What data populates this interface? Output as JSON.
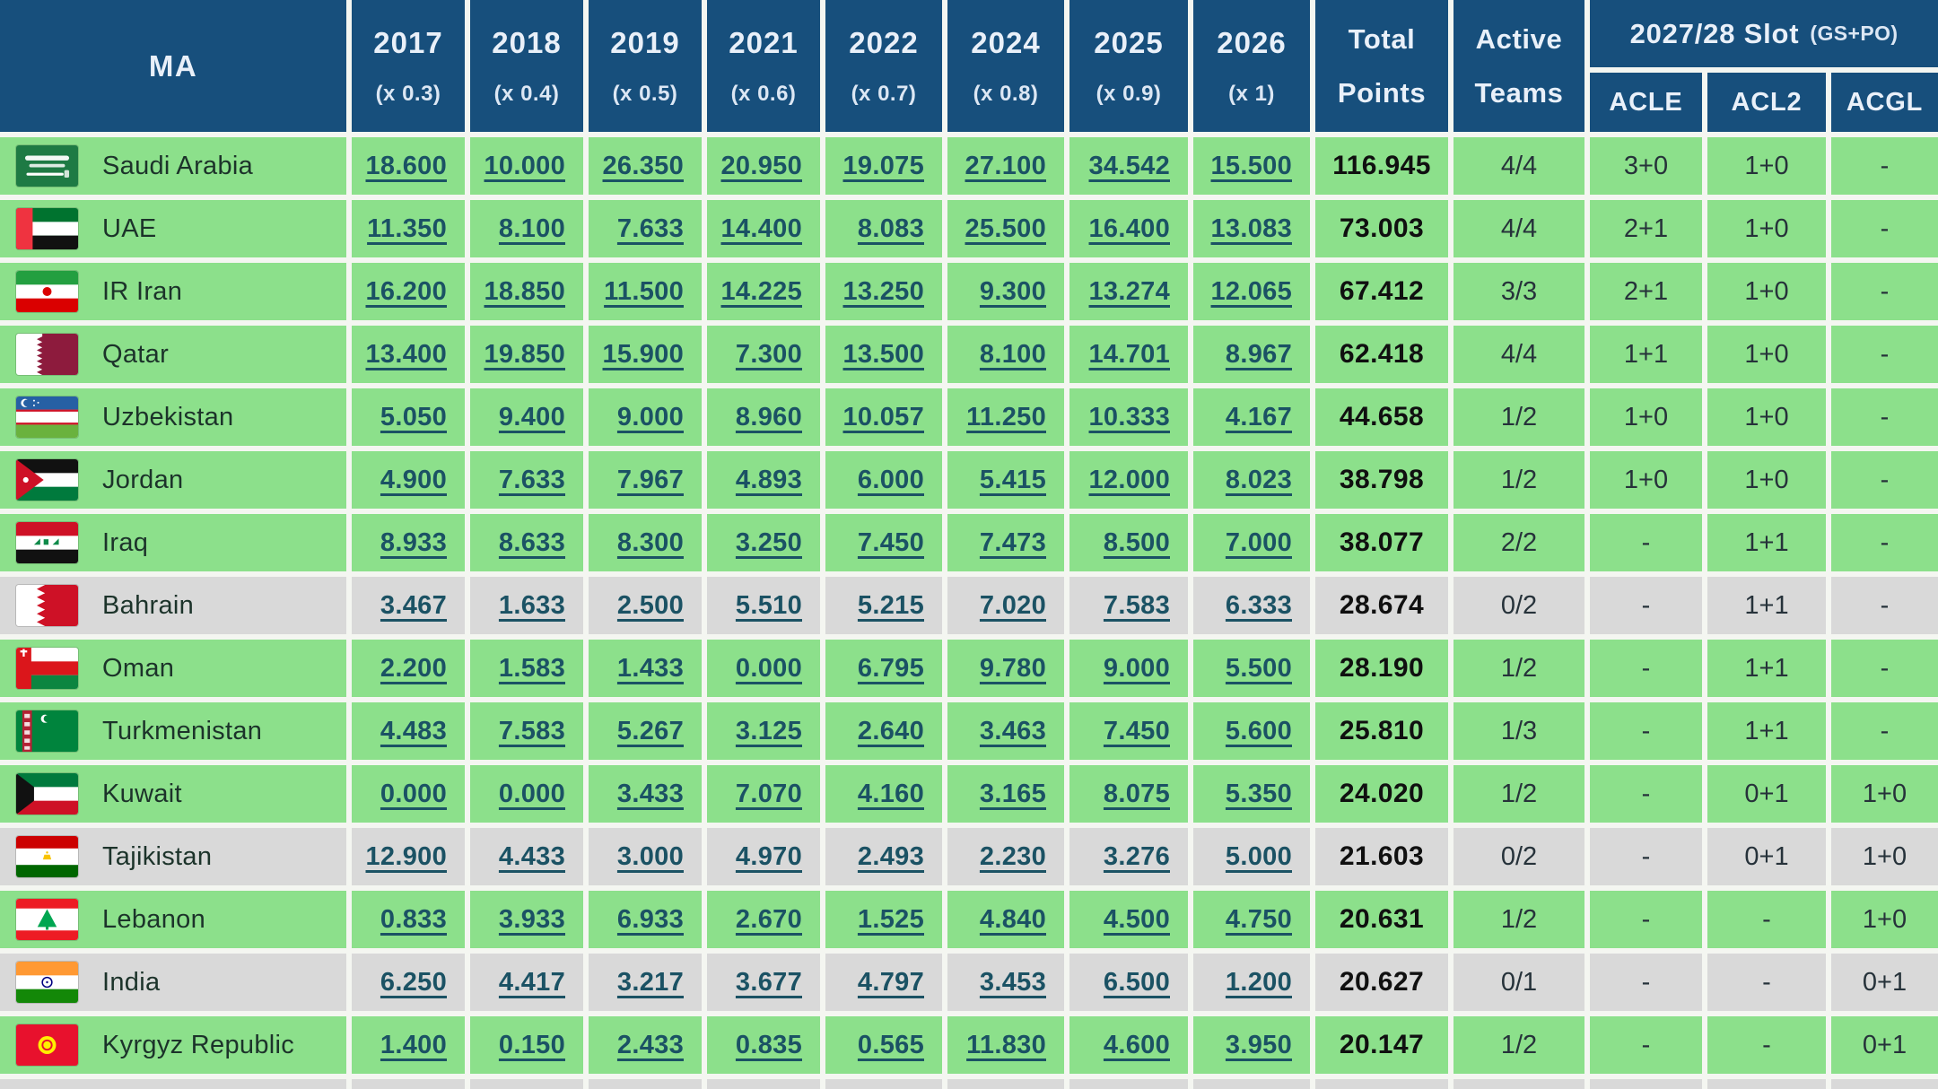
{
  "colors": {
    "header_bg": "#174f7c",
    "row_green": "#8ce08b",
    "row_gray": "#d9d9d9",
    "link": "#1b5264",
    "gap": "#f4f6f1"
  },
  "chart_data": {
    "type": "table",
    "title": "AFC MA ranking points and 2027/28 slot allocation",
    "header": {
      "ma_label": "MA",
      "year_columns": [
        {
          "year": "2017",
          "mult": "(x 0.3)"
        },
        {
          "year": "2018",
          "mult": "(x 0.4)"
        },
        {
          "year": "2019",
          "mult": "(x 0.5)"
        },
        {
          "year": "2021",
          "mult": "(x 0.6)"
        },
        {
          "year": "2022",
          "mult": "(x 0.7)"
        },
        {
          "year": "2024",
          "mult": "(x 0.8)"
        },
        {
          "year": "2025",
          "mult": "(x 0.9)"
        },
        {
          "year": "2026",
          "mult": "(x 1)"
        }
      ],
      "total_points_line1": "Total",
      "total_points_line2": "Points",
      "active_teams_line1": "Active",
      "active_teams_line2": "Teams",
      "slot_title": "2027/28 Slot",
      "slot_suffix": "(GS+PO)",
      "slot_subcols": [
        "ACLE",
        "ACL2",
        "ACGL"
      ]
    },
    "rows": [
      {
        "name": "Saudi Arabia",
        "flag": "saudi-arabia",
        "inactive": false,
        "values": [
          "18.600",
          "10.000",
          "26.350",
          "20.950",
          "19.075",
          "27.100",
          "34.542",
          "15.500"
        ],
        "total": "116.945",
        "active": "4/4",
        "acle": "3+0",
        "acl2": "1+0",
        "acgl": "-"
      },
      {
        "name": "UAE",
        "flag": "uae",
        "inactive": false,
        "values": [
          "11.350",
          "8.100",
          "7.633",
          "14.400",
          "8.083",
          "25.500",
          "16.400",
          "13.083"
        ],
        "total": "73.003",
        "active": "4/4",
        "acle": "2+1",
        "acl2": "1+0",
        "acgl": "-"
      },
      {
        "name": "IR Iran",
        "flag": "iran",
        "inactive": false,
        "values": [
          "16.200",
          "18.850",
          "11.500",
          "14.225",
          "13.250",
          "9.300",
          "13.274",
          "12.065"
        ],
        "total": "67.412",
        "active": "3/3",
        "acle": "2+1",
        "acl2": "1+0",
        "acgl": "-"
      },
      {
        "name": "Qatar",
        "flag": "qatar",
        "inactive": false,
        "values": [
          "13.400",
          "19.850",
          "15.900",
          "7.300",
          "13.500",
          "8.100",
          "14.701",
          "8.967"
        ],
        "total": "62.418",
        "active": "4/4",
        "acle": "1+1",
        "acl2": "1+0",
        "acgl": "-"
      },
      {
        "name": "Uzbekistan",
        "flag": "uzbekistan",
        "inactive": false,
        "values": [
          "5.050",
          "9.400",
          "9.000",
          "8.960",
          "10.057",
          "11.250",
          "10.333",
          "4.167"
        ],
        "total": "44.658",
        "active": "1/2",
        "acle": "1+0",
        "acl2": "1+0",
        "acgl": "-"
      },
      {
        "name": "Jordan",
        "flag": "jordan",
        "inactive": false,
        "values": [
          "4.900",
          "7.633",
          "7.967",
          "4.893",
          "6.000",
          "5.415",
          "12.000",
          "8.023"
        ],
        "total": "38.798",
        "active": "1/2",
        "acle": "1+0",
        "acl2": "1+0",
        "acgl": "-"
      },
      {
        "name": "Iraq",
        "flag": "iraq",
        "inactive": false,
        "values": [
          "8.933",
          "8.633",
          "8.300",
          "3.250",
          "7.450",
          "7.473",
          "8.500",
          "7.000"
        ],
        "total": "38.077",
        "active": "2/2",
        "acle": "-",
        "acl2": "1+1",
        "acgl": "-"
      },
      {
        "name": "Bahrain",
        "flag": "bahrain",
        "inactive": true,
        "values": [
          "3.467",
          "1.633",
          "2.500",
          "5.510",
          "5.215",
          "7.020",
          "7.583",
          "6.333"
        ],
        "total": "28.674",
        "active": "0/2",
        "acle": "-",
        "acl2": "1+1",
        "acgl": "-"
      },
      {
        "name": "Oman",
        "flag": "oman",
        "inactive": false,
        "values": [
          "2.200",
          "1.583",
          "1.433",
          "0.000",
          "6.795",
          "9.780",
          "9.000",
          "5.500"
        ],
        "total": "28.190",
        "active": "1/2",
        "acle": "-",
        "acl2": "1+1",
        "acgl": "-"
      },
      {
        "name": "Turkmenistan",
        "flag": "turkmenistan",
        "inactive": false,
        "values": [
          "4.483",
          "7.583",
          "5.267",
          "3.125",
          "2.640",
          "3.463",
          "7.450",
          "5.600"
        ],
        "total": "25.810",
        "active": "1/3",
        "acle": "-",
        "acl2": "1+1",
        "acgl": "-"
      },
      {
        "name": "Kuwait",
        "flag": "kuwait",
        "inactive": false,
        "values": [
          "0.000",
          "0.000",
          "3.433",
          "7.070",
          "4.160",
          "3.165",
          "8.075",
          "5.350"
        ],
        "total": "24.020",
        "active": "1/2",
        "acle": "-",
        "acl2": "0+1",
        "acgl": "1+0"
      },
      {
        "name": "Tajikistan",
        "flag": "tajikistan",
        "inactive": true,
        "values": [
          "12.900",
          "4.433",
          "3.000",
          "4.970",
          "2.493",
          "2.230",
          "3.276",
          "5.000"
        ],
        "total": "21.603",
        "active": "0/2",
        "acle": "-",
        "acl2": "0+1",
        "acgl": "1+0"
      },
      {
        "name": "Lebanon",
        "flag": "lebanon",
        "inactive": false,
        "values": [
          "0.833",
          "3.933",
          "6.933",
          "2.670",
          "1.525",
          "4.840",
          "4.500",
          "4.750"
        ],
        "total": "20.631",
        "active": "1/2",
        "acle": "-",
        "acl2": "-",
        "acgl": "1+0"
      },
      {
        "name": "India",
        "flag": "india",
        "inactive": true,
        "values": [
          "6.250",
          "4.417",
          "3.217",
          "3.677",
          "4.797",
          "3.453",
          "6.500",
          "1.200"
        ],
        "total": "20.627",
        "active": "0/1",
        "acle": "-",
        "acl2": "-",
        "acgl": "0+1"
      },
      {
        "name": "Kyrgyz Republic",
        "flag": "kyrgyzstan",
        "inactive": false,
        "values": [
          "1.400",
          "0.150",
          "2.433",
          "0.835",
          "0.565",
          "11.830",
          "4.600",
          "3.950"
        ],
        "total": "20.147",
        "active": "1/2",
        "acle": "-",
        "acl2": "-",
        "acgl": "0+1"
      }
    ]
  }
}
